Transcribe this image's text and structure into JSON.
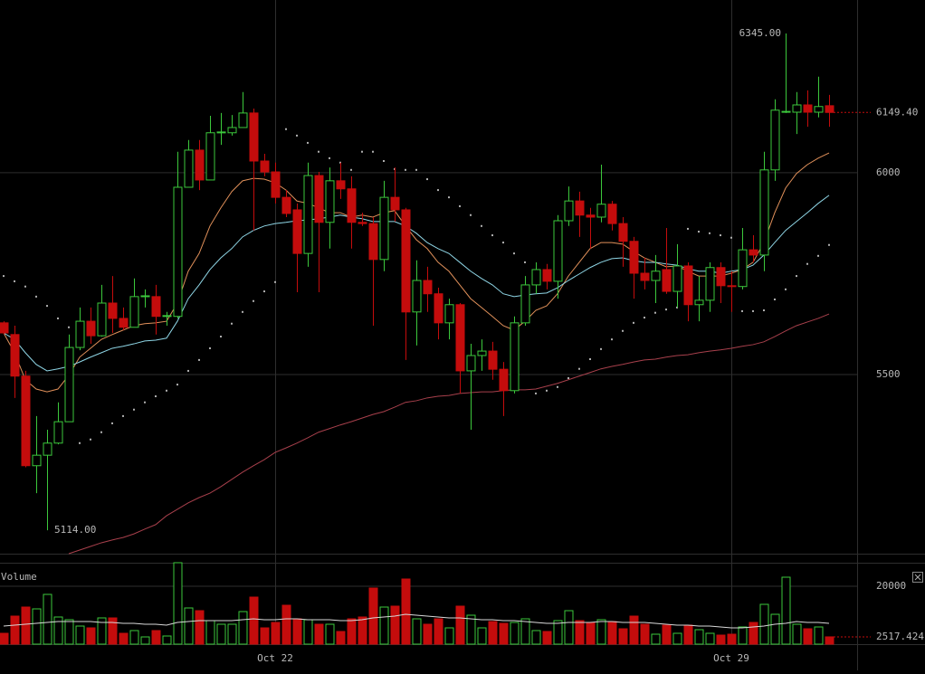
{
  "chart_data": [
    {
      "type": "candlestick",
      "categories": [
        null,
        null,
        null,
        null,
        null,
        null,
        null,
        null,
        null,
        null,
        null,
        null,
        null,
        null,
        null,
        null,
        null,
        null,
        null,
        null,
        null,
        null,
        null,
        null,
        null,
        "Oct 22",
        null,
        null,
        null,
        null,
        null,
        null,
        null,
        null,
        null,
        null,
        null,
        null,
        null,
        null,
        null,
        null,
        null,
        null,
        null,
        null,
        null,
        null,
        null,
        null,
        null,
        null,
        null,
        null,
        null,
        null,
        null,
        null,
        null,
        null,
        null,
        null,
        null,
        null,
        null,
        null,
        null,
        "Oct 29",
        null,
        null,
        null,
        null,
        null,
        null,
        null,
        null,
        null
      ],
      "open": [
        5628,
        5599,
        5496,
        5274,
        5300,
        5330,
        5383,
        5567,
        5632,
        5596,
        5677,
        5639,
        5617,
        5693,
        5693,
        5644,
        5644,
        5964,
        6056,
        5982,
        6099,
        6099,
        6112,
        6148,
        6029,
        6002,
        5939,
        5908,
        5800,
        5993,
        5877,
        5980,
        5960,
        5877,
        5874,
        5785,
        5939,
        5908,
        5655,
        5733,
        5700,
        5628,
        5673,
        5509,
        5547,
        5558,
        5513,
        5460,
        5628,
        5722,
        5760,
        5731,
        5881,
        5930,
        5895,
        5890,
        5922,
        5874,
        5830,
        5751,
        5733,
        5760,
        5706,
        5769,
        5673,
        5684,
        5765,
        5720,
        5718,
        5809,
        5796,
        6007,
        6150,
        6150,
        6168,
        6150,
        6166
      ],
      "high": [
        5632,
        5621,
        5509,
        5397,
        5363,
        5431,
        5599,
        5666,
        5666,
        5722,
        5744,
        5666,
        5738,
        5711,
        5722,
        5655,
        6052,
        6081,
        6081,
        6141,
        6148,
        6143,
        6200,
        6159,
        6047,
        6025,
        5957,
        5924,
        6025,
        6002,
        6013,
        6025,
        5991,
        5901,
        5890,
        5980,
        6013,
        5913,
        5783,
        5767,
        5715,
        5688,
        5677,
        5576,
        5587,
        5581,
        5531,
        5644,
        5744,
        5778,
        5774,
        5895,
        5966,
        5953,
        5913,
        6020,
        5930,
        5890,
        5841,
        5789,
        5796,
        5863,
        5823,
        5778,
        5744,
        5778,
        5778,
        5756,
        5863,
        5845,
        6052,
        6182,
        6345,
        6200,
        6204,
        6238,
        6193
      ],
      "low": [
        5600,
        5442,
        5270,
        5206,
        5114,
        5327,
        5383,
        5560,
        5576,
        5594,
        5603,
        5610,
        5617,
        5666,
        5599,
        5621,
        5639,
        5964,
        5957,
        5982,
        6069,
        6092,
        6112,
        5857,
        5991,
        5924,
        5890,
        5704,
        5767,
        5704,
        5812,
        5935,
        5812,
        5868,
        5621,
        5756,
        5879,
        5536,
        5572,
        5655,
        5587,
        5587,
        5453,
        5363,
        5509,
        5487,
        5397,
        5453,
        5621,
        5700,
        5711,
        5688,
        5868,
        5841,
        5812,
        5877,
        5857,
        5767,
        5688,
        5711,
        5677,
        5700,
        5666,
        5632,
        5632,
        5655,
        5677,
        5655,
        5711,
        5778,
        5756,
        5980,
        6148,
        6096,
        6114,
        6137,
        6114
      ],
      "close": [
        5603,
        5496,
        5274,
        5300,
        5330,
        5383,
        5567,
        5632,
        5596,
        5677,
        5639,
        5617,
        5693,
        5695,
        5644,
        5646,
        5964,
        6056,
        5982,
        6099,
        6101,
        6112,
        6148,
        6029,
        6002,
        5939,
        5899,
        5800,
        5993,
        5877,
        5980,
        5960,
        5877,
        5874,
        5785,
        5939,
        5908,
        5655,
        5733,
        5700,
        5628,
        5673,
        5509,
        5547,
        5558,
        5513,
        5460,
        5628,
        5722,
        5760,
        5731,
        5881,
        5930,
        5895,
        5890,
        5922,
        5874,
        5830,
        5751,
        5733,
        5756,
        5706,
        5769,
        5673,
        5684,
        5765,
        5720,
        5718,
        5809,
        5796,
        6007,
        6155,
        6152,
        6168,
        6150,
        6164,
        6149.4
      ],
      "up_color": "#3cc83c",
      "down_color": "#c40c0c",
      "series": [
        {
          "color": "#e0905a",
          "style": "line",
          "values": [
            5603,
            5554,
            5487,
            5464,
            5457,
            5464,
            5498,
            5543,
            5565,
            5587,
            5599,
            5610,
            5621,
            5626,
            5628,
            5632,
            5677,
            5756,
            5800,
            5868,
            5913,
            5953,
            5980,
            5986,
            5984,
            5975,
            5957,
            5930,
            5924,
            5913,
            5901,
            5901,
            5890,
            5895,
            5890,
            5901,
            5906,
            5868,
            5834,
            5812,
            5778,
            5756,
            5722,
            5688,
            5666,
            5644,
            5621,
            5610,
            5632,
            5659,
            5670,
            5700,
            5744,
            5778,
            5812,
            5827,
            5827,
            5823,
            5805,
            5789,
            5778,
            5767,
            5769,
            5756,
            5744,
            5744,
            5744,
            5751,
            5760,
            5778,
            5827,
            5901,
            5962,
            5998,
            6020,
            6036,
            6049
          ]
        },
        {
          "color": "#8fd6e6",
          "style": "line",
          "values": [
            5603,
            5587,
            5554,
            5525,
            5509,
            5514,
            5520,
            5531,
            5543,
            5554,
            5565,
            5570,
            5576,
            5583,
            5585,
            5590,
            5632,
            5688,
            5722,
            5760,
            5789,
            5812,
            5841,
            5857,
            5868,
            5874,
            5877,
            5881,
            5883,
            5886,
            5890,
            5895,
            5890,
            5886,
            5879,
            5879,
            5879,
            5868,
            5850,
            5827,
            5812,
            5800,
            5778,
            5756,
            5738,
            5722,
            5700,
            5693,
            5697,
            5700,
            5702,
            5715,
            5733,
            5749,
            5765,
            5778,
            5787,
            5789,
            5782,
            5778,
            5778,
            5774,
            5771,
            5762,
            5756,
            5756,
            5751,
            5756,
            5760,
            5771,
            5796,
            5827,
            5857,
            5879,
            5901,
            5924,
            5944
          ]
        },
        {
          "color": "#a8404c",
          "style": "line",
          "values": [
            null,
            null,
            null,
            null,
            null,
            null,
            5056,
            5065,
            5074,
            5083,
            5090,
            5096,
            5105,
            5117,
            5128,
            5150,
            5166,
            5182,
            5195,
            5206,
            5222,
            5240,
            5258,
            5274,
            5289,
            5307,
            5318,
            5330,
            5343,
            5357,
            5366,
            5375,
            5383,
            5392,
            5401,
            5408,
            5419,
            5431,
            5435,
            5442,
            5446,
            5448,
            5453,
            5455,
            5457,
            5457,
            5460,
            5462,
            5462,
            5464,
            5471,
            5478,
            5487,
            5496,
            5505,
            5514,
            5520,
            5525,
            5531,
            5536,
            5538,
            5543,
            5547,
            5549,
            5554,
            5558,
            5561,
            5565,
            5570,
            5574,
            5581,
            5594,
            5608,
            5621,
            5630,
            5639,
            5650
          ]
        },
        {
          "color": "#b0b0b0",
          "style": "dots",
          "values": [
            5744,
            5731,
            5718,
            5693,
            5670,
            5639,
            5617,
            5330,
            5339,
            5357,
            5379,
            5397,
            5413,
            5431,
            5446,
            5460,
            5475,
            5509,
            5536,
            5565,
            5594,
            5626,
            5655,
            5682,
            5706,
            5729,
            6108,
            6092,
            6074,
            6052,
            6036,
            6025,
            6007,
            6052,
            6052,
            6029,
            6009,
            6007,
            6007,
            5984,
            5957,
            5939,
            5917,
            5895,
            5868,
            5845,
            5827,
            5800,
            5778,
            5453,
            5460,
            5469,
            5491,
            5514,
            5538,
            5563,
            5587,
            5608,
            5628,
            5641,
            5653,
            5661,
            5666,
            5861,
            5854,
            5850,
            5845,
            5839,
            5657,
            5657,
            5659,
            5686,
            5711,
            5744,
            5774,
            5794,
            5821
          ]
        }
      ],
      "ylim": [
        5056,
        6428
      ],
      "yticks": [
        5500,
        6000
      ],
      "grid": true,
      "annotations": {
        "high": {
          "value": 6345,
          "label": "6345.00"
        },
        "low": {
          "value": 5114,
          "label": "5114.00"
        },
        "last": {
          "value": 6149.4,
          "label": "6149.40"
        }
      }
    },
    {
      "type": "bar",
      "title": "Volume",
      "values": [
        3750,
        9688,
        12813,
        12188,
        17188,
        9375,
        8438,
        6250,
        5625,
        9063,
        9063,
        3750,
        4688,
        2500,
        4688,
        2813,
        28125,
        12500,
        11563,
        8125,
        6875,
        6875,
        11250,
        16250,
        5625,
        7500,
        13438,
        8750,
        8438,
        6875,
        6875,
        4375,
        8750,
        9375,
        19375,
        12813,
        13125,
        22500,
        8750,
        6875,
        8750,
        5625,
        13125,
        10000,
        5625,
        7813,
        7188,
        7500,
        8750,
        4688,
        4375,
        8125,
        11563,
        8125,
        7500,
        8438,
        7813,
        5313,
        9688,
        6875,
        3438,
        6563,
        3750,
        6563,
        5000,
        3750,
        3125,
        3438,
        5938,
        7500,
        13750,
        10313,
        23125,
        6875,
        5313,
        5938,
        2517.424
      ],
      "series": [
        {
          "color": "#d8d8d8",
          "style": "line",
          "values": [
            6250,
            6563,
            6875,
            7188,
            7500,
            7813,
            7813,
            7813,
            7813,
            7500,
            7500,
            7188,
            7188,
            6875,
            6875,
            6563,
            7500,
            7813,
            8125,
            8125,
            8125,
            8125,
            8438,
            8750,
            8438,
            8438,
            8750,
            8750,
            8438,
            8438,
            8438,
            8125,
            8125,
            8438,
            9063,
            9375,
            9688,
            10313,
            10000,
            9688,
            9375,
            9063,
            9063,
            8750,
            8438,
            8438,
            8125,
            8125,
            7813,
            7500,
            7188,
            7188,
            7500,
            7500,
            7500,
            7813,
            7813,
            7500,
            7500,
            7500,
            7188,
            6875,
            6563,
            6563,
            6250,
            6250,
            5938,
            5625,
            5625,
            5938,
            6250,
            6875,
            7188,
            7813,
            7500,
            7500,
            7188
          ]
        }
      ],
      "ylim": [
        0,
        28125
      ],
      "yticks": [
        20000
      ],
      "grid": true
    }
  ]
}
